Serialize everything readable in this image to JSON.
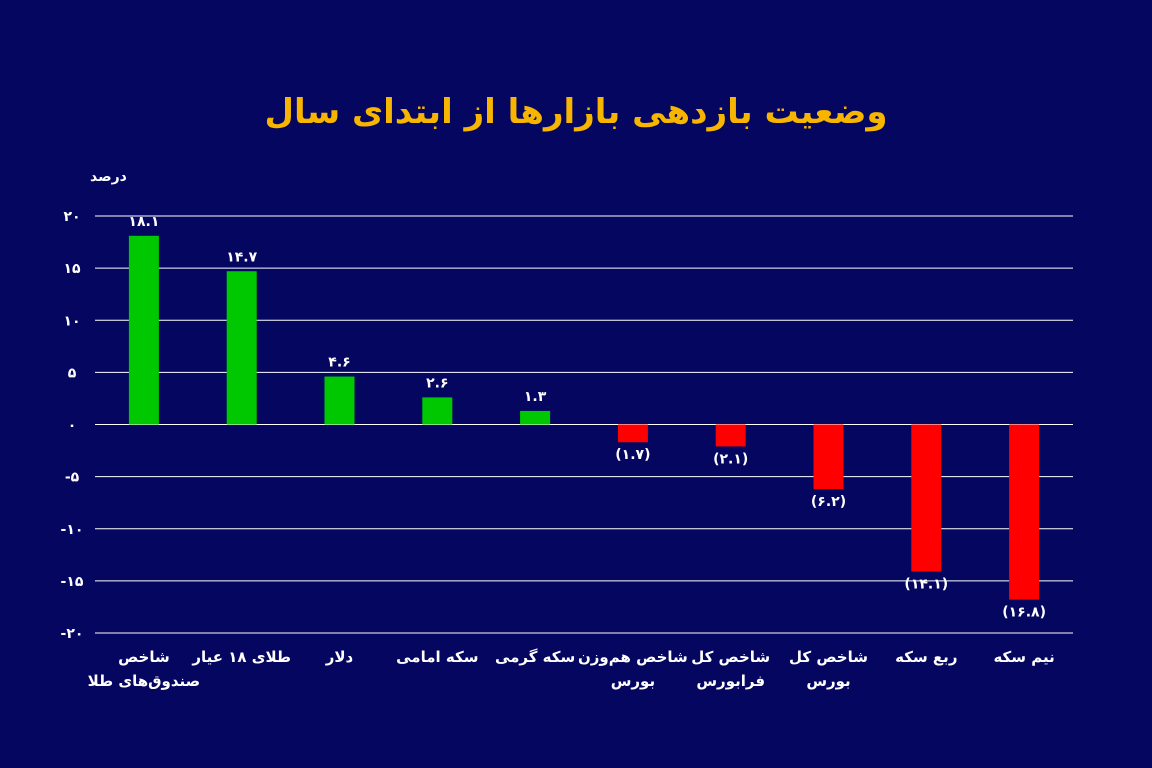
{
  "chart_data": {
    "type": "bar",
    "title": "وضعیت بازدهی بازارها از ابتدای سال",
    "ylabel": "درصد",
    "xlabel": "",
    "ylim": [
      -20,
      20
    ],
    "yticks": [
      20,
      15,
      10,
      5,
      0,
      -5,
      -10,
      -15,
      -20
    ],
    "ytick_labels": [
      "۲۰",
      "۱۵",
      "۱۰",
      "۵",
      "۰",
      "-۵",
      "-۱۰",
      "-۱۵",
      "-۲۰"
    ],
    "grid": true,
    "categories": [
      [
        "شاخص",
        "صندوق‌های طلا"
      ],
      [
        "طلای ۱۸ عیار"
      ],
      [
        "دلار"
      ],
      [
        "سکه امامی"
      ],
      [
        "سکه گرمی"
      ],
      [
        "شاخص هم‌وزن",
        "بورس"
      ],
      [
        "شاخص کل",
        "فرابورس"
      ],
      [
        "شاخص کل",
        "بورس"
      ],
      [
        "ربع سکه"
      ],
      [
        "نیم سکه"
      ]
    ],
    "values": [
      18.1,
      14.7,
      4.6,
      2.6,
      1.3,
      -1.7,
      -2.1,
      -6.2,
      -14.1,
      -16.8
    ],
    "data_labels": [
      "۱۸.۱",
      "۱۴.۷",
      "۴.۶",
      "۲.۶",
      "۱.۳",
      "(۱.۷)",
      "(۲.۱)",
      "(۶.۲)",
      "(۱۴.۱)",
      "(۱۶.۸)"
    ],
    "colors": {
      "positive": "#00c800",
      "negative": "#ff0000",
      "background": "#05065f",
      "title": "#f7b500",
      "text": "#ffffff"
    }
  }
}
